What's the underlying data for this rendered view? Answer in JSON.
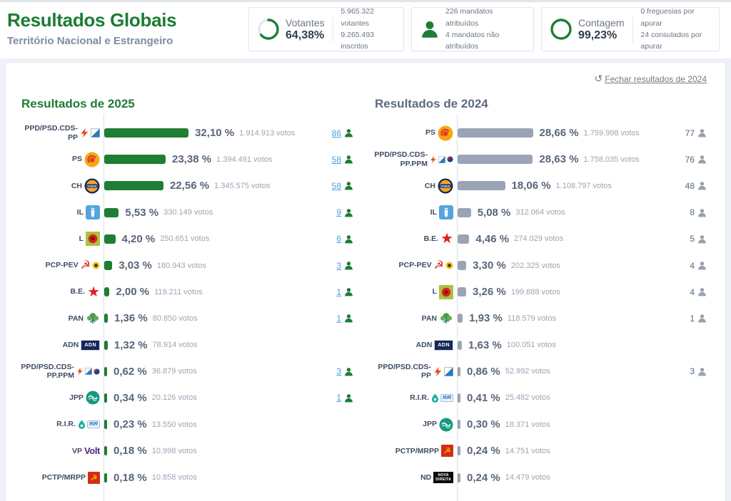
{
  "header": {
    "title": "Resultados Globais",
    "subtitle": "Território Nacional e Estrangeiro",
    "stats": {
      "votantes": {
        "label": "Votantes",
        "value": "64,38%",
        "percent": 64.38,
        "line1": "5.965.322 votantes",
        "line2": "9.265.493 inscritos"
      },
      "mandatos": {
        "line1": "226 mandatos atribuídos",
        "line2": "4 mandatos não atribuídos"
      },
      "contagem": {
        "label": "Contagem",
        "value": "99,23%",
        "percent": 99.23,
        "line1": "0 freguesias por apurar",
        "line2": "24 consulados por apurar"
      }
    }
  },
  "panel": {
    "close_link": "Fechar resultados de 2024",
    "columns": [
      {
        "title": "Resultados de 2025",
        "accent": "#1c7c33",
        "bar_color": "#1e7e34",
        "mandates_are_links": true,
        "rows": [
          {
            "party": "PPD/PSD.CDS-PP",
            "icon": "psd-cds",
            "pct": 32.1,
            "pct_label": "32,10 %",
            "votes": "1.914.913 votos",
            "mandates": "86"
          },
          {
            "party": "PS",
            "icon": "ps",
            "pct": 23.38,
            "pct_label": "23,38 %",
            "votes": "1.394.491 votos",
            "mandates": "58"
          },
          {
            "party": "CH",
            "icon": "chega",
            "pct": 22.56,
            "pct_label": "22,56 %",
            "votes": "1.345.575 votos",
            "mandates": "58"
          },
          {
            "party": "IL",
            "icon": "il",
            "pct": 5.53,
            "pct_label": "5,53 %",
            "votes": "330.149 votos",
            "mandates": "9"
          },
          {
            "party": "L",
            "icon": "livre",
            "pct": 4.2,
            "pct_label": "4,20 %",
            "votes": "250.651 votos",
            "mandates": "6"
          },
          {
            "party": "PCP-PEV",
            "icon": "pcp-pev",
            "pct": 3.03,
            "pct_label": "3,03 %",
            "votes": "180.943 votos",
            "mandates": "3"
          },
          {
            "party": "B.E.",
            "icon": "be",
            "pct": 2.0,
            "pct_label": "2,00 %",
            "votes": "119.211 votos",
            "mandates": "1"
          },
          {
            "party": "PAN",
            "icon": "pan",
            "pct": 1.36,
            "pct_label": "1,36 %",
            "votes": "80.850 votos",
            "mandates": "1"
          },
          {
            "party": "ADN",
            "icon": "adn",
            "pct": 1.32,
            "pct_label": "1,32 %",
            "votes": "78.914 votos",
            "mandates": null
          },
          {
            "party": "PPD/PSD.CDS-PP.PPM",
            "icon": "psd-cds-ppm",
            "pct": 0.62,
            "pct_label": "0,62 %",
            "votes": "36.879 votos",
            "mandates": "3"
          },
          {
            "party": "JPP",
            "icon": "jpp",
            "pct": 0.34,
            "pct_label": "0,34 %",
            "votes": "20.126 votos",
            "mandates": "1"
          },
          {
            "party": "R.I.R.",
            "icon": "rir",
            "pct": 0.23,
            "pct_label": "0,23 %",
            "votes": "13.550 votos",
            "mandates": null
          },
          {
            "party": "VP",
            "icon": "volt",
            "pct": 0.18,
            "pct_label": "0,18 %",
            "votes": "10.998 votos",
            "mandates": null
          },
          {
            "party": "PCTP/MRPP",
            "icon": "pctp",
            "pct": 0.18,
            "pct_label": "0,18 %",
            "votes": "10.858 votos",
            "mandates": null
          }
        ]
      },
      {
        "title": "Resultados de 2024",
        "accent": "#5d6a7e",
        "bar_color": "#9aa4b6",
        "mandates_are_links": false,
        "rows": [
          {
            "party": "PS",
            "icon": "ps",
            "pct": 28.66,
            "pct_label": "28,66 %",
            "votes": "1.759.998 votos",
            "mandates": "77"
          },
          {
            "party": "PPD/PSD.CDS-PP.PPM",
            "icon": "psd-cds-ppm",
            "pct": 28.63,
            "pct_label": "28,63 %",
            "votes": "1.758.035 votos",
            "mandates": "76"
          },
          {
            "party": "CH",
            "icon": "chega",
            "pct": 18.06,
            "pct_label": "18,06 %",
            "votes": "1.108.797 votos",
            "mandates": "48"
          },
          {
            "party": "IL",
            "icon": "il",
            "pct": 5.08,
            "pct_label": "5,08 %",
            "votes": "312.064 votos",
            "mandates": "8"
          },
          {
            "party": "B.E.",
            "icon": "be",
            "pct": 4.46,
            "pct_label": "4,46 %",
            "votes": "274.029 votos",
            "mandates": "5"
          },
          {
            "party": "PCP-PEV",
            "icon": "pcp-pev",
            "pct": 3.3,
            "pct_label": "3,30 %",
            "votes": "202.325 votos",
            "mandates": "4"
          },
          {
            "party": "L",
            "icon": "livre",
            "pct": 3.26,
            "pct_label": "3,26 %",
            "votes": "199.888 votos",
            "mandates": "4"
          },
          {
            "party": "PAN",
            "icon": "pan",
            "pct": 1.93,
            "pct_label": "1,93 %",
            "votes": "118.579 votos",
            "mandates": "1"
          },
          {
            "party": "ADN",
            "icon": "adn",
            "pct": 1.63,
            "pct_label": "1,63 %",
            "votes": "100.051 votos",
            "mandates": null
          },
          {
            "party": "PPD/PSD.CDS-PP",
            "icon": "psd-cds",
            "pct": 0.86,
            "pct_label": "0,86 %",
            "votes": "52.992 votos",
            "mandates": "3"
          },
          {
            "party": "R.I.R.",
            "icon": "rir",
            "pct": 0.41,
            "pct_label": "0,41 %",
            "votes": "25.482 votos",
            "mandates": null
          },
          {
            "party": "JPP",
            "icon": "jpp",
            "pct": 0.3,
            "pct_label": "0,30 %",
            "votes": "18.371 votos",
            "mandates": null
          },
          {
            "party": "PCTP/MRPP",
            "icon": "pctp",
            "pct": 0.24,
            "pct_label": "0,24 %",
            "votes": "14.751 votos",
            "mandates": null
          },
          {
            "party": "ND",
            "icon": "nd",
            "pct": 0.24,
            "pct_label": "0,24 %",
            "votes": "14.479 votos",
            "mandates": null
          }
        ]
      }
    ]
  },
  "colors": {
    "accent_green": "#1e7e34",
    "bar_gray": "#9aa4b6",
    "mandate_link_blue": "#4aa0d8",
    "person_gray": "#97a1b0"
  },
  "chart_data": [
    {
      "type": "bar",
      "orientation": "horizontal",
      "title": "Resultados de 2025",
      "unit": "% of votes",
      "bar_color": "#1e7e34",
      "categories": [
        "PPD/PSD.CDS-PP",
        "PS",
        "CH",
        "IL",
        "L",
        "PCP-PEV",
        "B.E.",
        "PAN",
        "ADN",
        "PPD/PSD.CDS-PP.PPM",
        "JPP",
        "R.I.R.",
        "VP",
        "PCTP/MRPP"
      ],
      "values": [
        32.1,
        23.38,
        22.56,
        5.53,
        4.2,
        3.03,
        2.0,
        1.36,
        1.32,
        0.62,
        0.34,
        0.23,
        0.18,
        0.18
      ],
      "votes": [
        1914913,
        1394491,
        1345575,
        330149,
        250651,
        180943,
        119211,
        80850,
        78914,
        36879,
        20126,
        13550,
        10998,
        10858
      ],
      "mandates": [
        86,
        58,
        58,
        9,
        6,
        3,
        1,
        1,
        null,
        3,
        1,
        null,
        null,
        null
      ],
      "xlim": [
        0,
        35
      ],
      "grid": false,
      "legend": false
    },
    {
      "type": "bar",
      "orientation": "horizontal",
      "title": "Resultados de 2024",
      "unit": "% of votes",
      "bar_color": "#9aa4b6",
      "categories": [
        "PS",
        "PPD/PSD.CDS-PP.PPM",
        "CH",
        "IL",
        "B.E.",
        "PCP-PEV",
        "L",
        "PAN",
        "ADN",
        "PPD/PSD.CDS-PP",
        "R.I.R.",
        "JPP",
        "PCTP/MRPP",
        "ND"
      ],
      "values": [
        28.66,
        28.63,
        18.06,
        5.08,
        4.46,
        3.3,
        3.26,
        1.93,
        1.63,
        0.86,
        0.41,
        0.3,
        0.24,
        0.24
      ],
      "votes": [
        1759998,
        1758035,
        1108797,
        312064,
        274029,
        202325,
        199888,
        118579,
        100051,
        52992,
        25482,
        18371,
        14751,
        14479
      ],
      "mandates": [
        77,
        76,
        48,
        8,
        5,
        4,
        4,
        1,
        null,
        3,
        null,
        null,
        null,
        null
      ],
      "xlim": [
        0,
        35
      ],
      "grid": false,
      "legend": false
    }
  ]
}
